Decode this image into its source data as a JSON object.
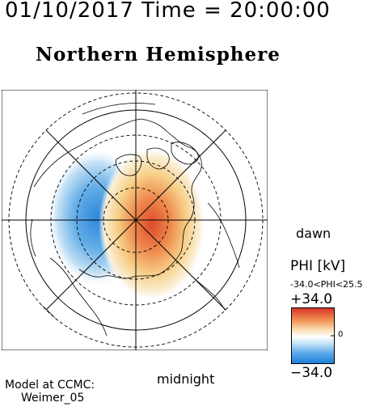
{
  "header": {
    "datetime": "01/10/2017 Time = 20:00:00"
  },
  "subtitle": "Northern Hemisphere",
  "map": {
    "labels": {
      "dawn": "dawn",
      "midnight": "midnight"
    },
    "potential": {
      "negative_cell": "dusk-side",
      "positive_cell": "dawn-side"
    },
    "colors": {
      "negative": "#3b8fe0",
      "positive": "#e04a2a",
      "neutral": "#ffffff"
    }
  },
  "colorbar": {
    "title": "PHI [kV]",
    "range_text": "-34.0<PHI<25.5",
    "max_label": "+34.0",
    "min_label": "−34.0",
    "zero_label": "0"
  },
  "credit": {
    "line1": "Model at CCMC:",
    "line2": "Weimer_05"
  }
}
